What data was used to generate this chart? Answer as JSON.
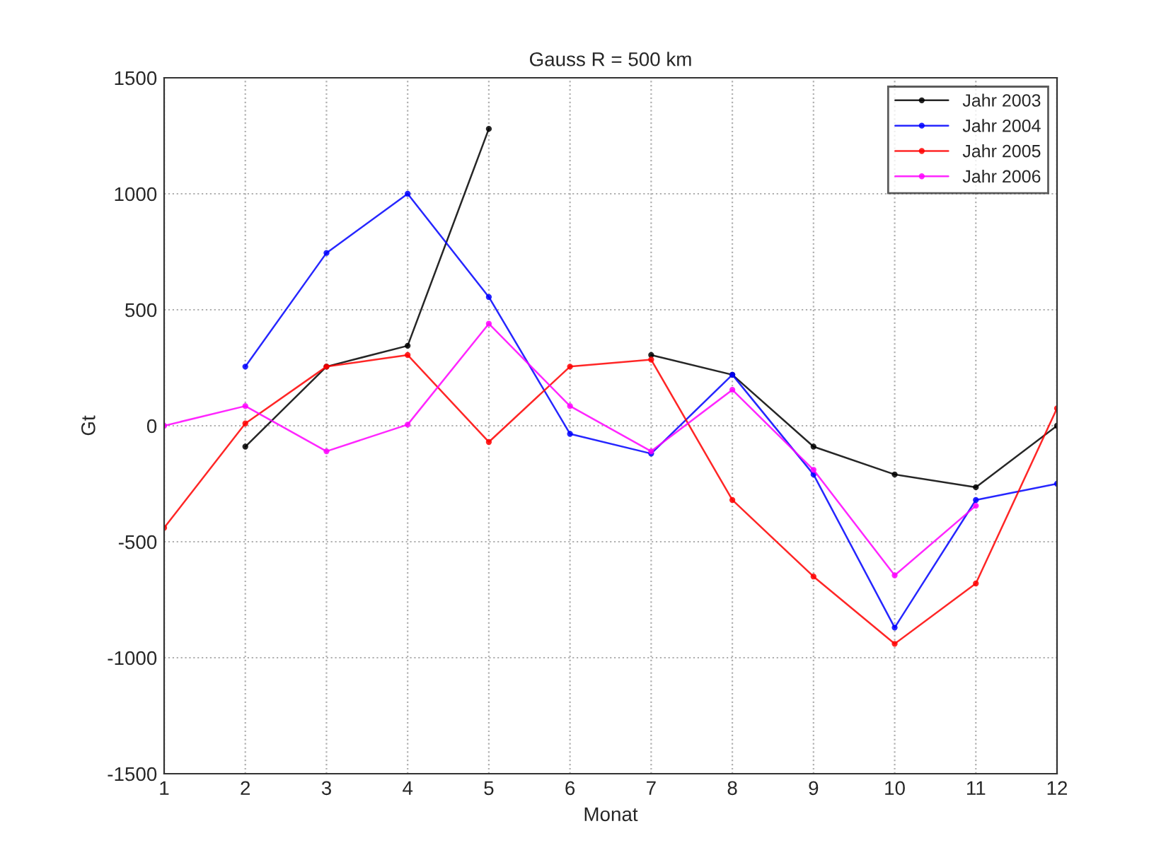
{
  "chart_data": {
    "type": "line",
    "title": "Gauss R = 500 km",
    "xlabel": "Monat",
    "ylabel": "Gt",
    "x": [
      1,
      2,
      3,
      4,
      5,
      6,
      7,
      8,
      9,
      10,
      11,
      12
    ],
    "series": [
      {
        "name": "Jahr 2003",
        "color": "#000000",
        "values": [
          null,
          -90,
          255,
          345,
          1280,
          null,
          305,
          220,
          -90,
          -210,
          -265,
          0
        ]
      },
      {
        "name": "Jahr 2004",
        "color": "#0000ff",
        "values": [
          null,
          255,
          745,
          1000,
          555,
          -35,
          -120,
          220,
          -210,
          -870,
          -320,
          -250
        ]
      },
      {
        "name": "Jahr 2005",
        "color": "#ff0000",
        "values": [
          -440,
          10,
          255,
          305,
          -70,
          255,
          285,
          -320,
          -650,
          -940,
          -680,
          75
        ]
      },
      {
        "name": "Jahr 2006",
        "color": "#ff00ff",
        "values": [
          0,
          85,
          -110,
          5,
          440,
          85,
          -110,
          155,
          -190,
          -645,
          -345,
          null
        ]
      }
    ],
    "xlim": [
      1,
      12
    ],
    "xticks": [
      1,
      2,
      3,
      4,
      5,
      6,
      7,
      8,
      9,
      10,
      11,
      12
    ],
    "ylim": [
      -1500,
      1500
    ],
    "yticks": [
      -1500,
      -1000,
      -500,
      0,
      500,
      1000,
      1500
    ],
    "grid": true,
    "legend": "top right",
    "marker": "circle",
    "line_style": "solid"
  }
}
